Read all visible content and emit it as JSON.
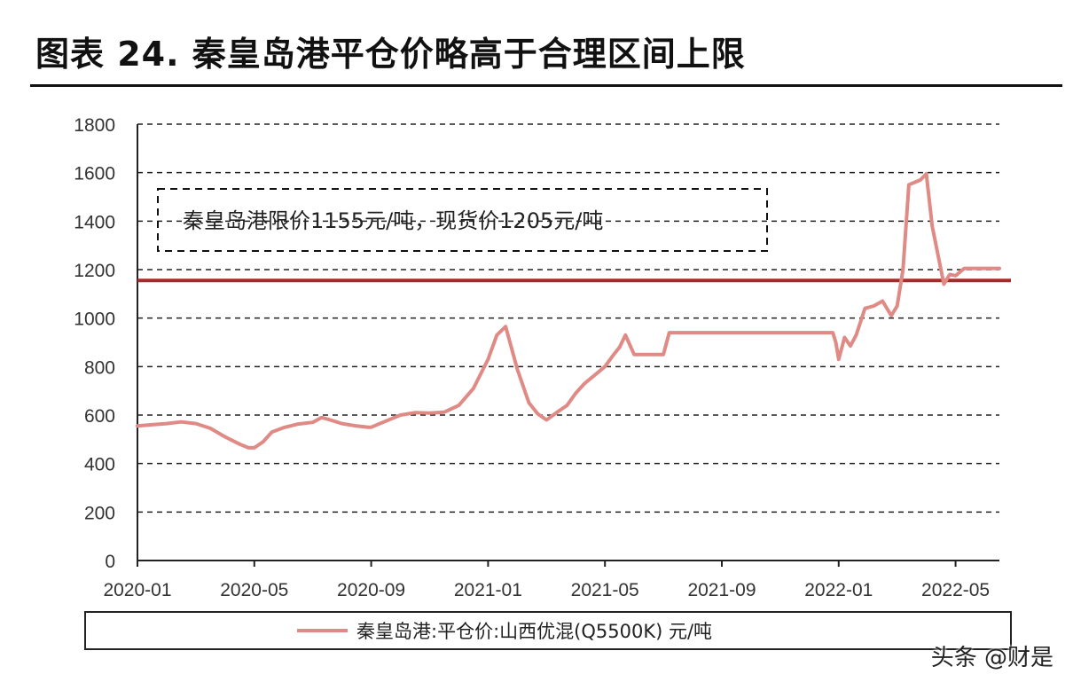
{
  "title": "图表 24. 秦皇岛港平仓价略高于合理区间上限",
  "watermark": "头条 @财是",
  "chart_data": {
    "type": "line",
    "ylim": [
      0,
      1800
    ],
    "yticks": [
      0,
      200,
      400,
      600,
      800,
      1000,
      1200,
      1400,
      1600,
      1800
    ],
    "xlim": [
      0,
      29.5
    ],
    "xticks": [
      {
        "x": 0,
        "label": "2020-01"
      },
      {
        "x": 4,
        "label": "2020-05"
      },
      {
        "x": 8,
        "label": "2020-09"
      },
      {
        "x": 12,
        "label": "2021-01"
      },
      {
        "x": 16,
        "label": "2021-05"
      },
      {
        "x": 20,
        "label": "2021-09"
      },
      {
        "x": 24,
        "label": "2022-01"
      },
      {
        "x": 28,
        "label": "2022-05"
      }
    ],
    "grid": true,
    "annotation": "秦皇岛港限价1155元/吨，现货价1205元/吨",
    "reference_line": {
      "value": 1155,
      "color": "#a52a2a"
    },
    "legend": {
      "position": "bottom",
      "label": "秦皇岛港:平仓价:山西优混(Q5500K) 元/吨"
    },
    "series": [
      {
        "name": "秦皇岛港:平仓价:山西优混(Q5500K) 元/吨",
        "color": "#e08a86",
        "x": [
          0,
          0.5,
          1,
          1.5,
          2,
          2.5,
          3,
          3.5,
          3.8,
          4,
          4.3,
          4.6,
          5,
          5.5,
          6,
          6.3,
          6.6,
          7,
          7.5,
          7.9,
          8,
          8.5,
          9,
          9.5,
          10,
          10.5,
          11,
          11.5,
          12,
          12.3,
          12.6,
          13,
          13.4,
          13.7,
          14,
          14.4,
          14.7,
          15,
          15.3,
          15.6,
          16,
          16.3,
          16.5,
          16.7,
          17,
          17.5,
          18,
          18.2,
          19,
          20,
          21,
          22,
          23,
          23.8,
          23.9,
          24,
          24.2,
          24.4,
          24.6,
          24.9,
          25.2,
          25.5,
          25.8,
          26,
          26.2,
          26.4,
          26.6,
          26.8,
          27.0,
          27.2,
          27.4,
          27.6,
          27.8,
          28.0,
          28.3,
          28.6,
          29.0,
          29.5
        ],
        "values": [
          555,
          560,
          565,
          572,
          565,
          545,
          510,
          480,
          465,
          465,
          490,
          530,
          548,
          563,
          570,
          590,
          580,
          565,
          555,
          550,
          550,
          575,
          600,
          610,
          608,
          612,
          640,
          710,
          830,
          930,
          965,
          790,
          650,
          605,
          580,
          615,
          640,
          690,
          730,
          760,
          800,
          850,
          880,
          930,
          850,
          850,
          850,
          940,
          940,
          940,
          940,
          940,
          940,
          940,
          900,
          830,
          920,
          885,
          930,
          1040,
          1050,
          1070,
          1010,
          1050,
          1200,
          1550,
          1560,
          1570,
          1595,
          1380,
          1260,
          1140,
          1180,
          1175,
          1205,
          1205,
          1205,
          1205
        ]
      }
    ]
  }
}
